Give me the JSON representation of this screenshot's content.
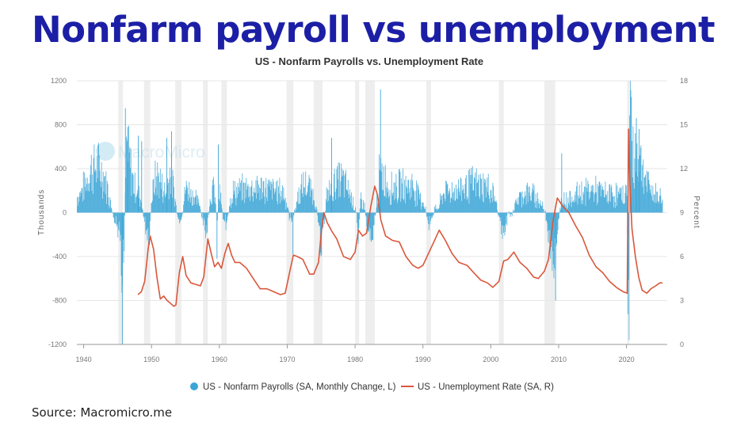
{
  "page": {
    "headline": "Nonfarm payroll vs unemployment",
    "source": "Source: Macromicro.me"
  },
  "chart_data": {
    "type": "bar+line",
    "title": "US - Nonfarm Payrolls vs. Unemployment Rate",
    "watermark": "MacroMicro",
    "x_ticks": [
      "1940",
      "1950",
      "1960",
      "1970",
      "1980",
      "1990",
      "2000",
      "2010",
      "2020"
    ],
    "xlim": [
      1939,
      2026
    ],
    "y_left": {
      "label": "Thousands",
      "ticks": [
        "1200",
        "800",
        "400",
        "0",
        "-400",
        "-800",
        "-1200"
      ],
      "lim": [
        -1200,
        1200
      ]
    },
    "y_right": {
      "label": "Percent",
      "ticks": [
        "18",
        "15",
        "12",
        "9",
        "6",
        "3",
        "0"
      ],
      "lim": [
        0,
        18
      ]
    },
    "recessions": [
      [
        1945.1,
        1945.8
      ],
      [
        1948.9,
        1949.8
      ],
      [
        1953.5,
        1954.4
      ],
      [
        1957.6,
        1958.3
      ],
      [
        1960.3,
        1961.1
      ],
      [
        1969.9,
        1970.9
      ],
      [
        1973.9,
        1975.2
      ],
      [
        1980.0,
        1980.6
      ],
      [
        1981.5,
        1982.9
      ],
      [
        1990.5,
        1991.2
      ],
      [
        2001.2,
        2001.9
      ],
      [
        2007.9,
        2009.5
      ],
      [
        2020.1,
        2020.4
      ]
    ],
    "legend": [
      {
        "label": "US - Nonfarm Payrolls (SA, Monthly Change, L)",
        "color": "#3aa5d6",
        "marker": "circle"
      },
      {
        "label": "US - Unemployment Rate (SA, R)",
        "color": "#d9573b",
        "marker": "line"
      }
    ],
    "payroll_anchors": [
      [
        1939.0,
        150
      ],
      [
        1940.0,
        250
      ],
      [
        1941.0,
        420
      ],
      [
        1942.0,
        450
      ],
      [
        1943.0,
        350
      ],
      [
        1944.0,
        80
      ],
      [
        1944.8,
        -150
      ],
      [
        1945.2,
        -250
      ],
      [
        1945.6,
        -800
      ],
      [
        1945.9,
        -300
      ],
      [
        1946.3,
        650
      ],
      [
        1946.8,
        450
      ],
      [
        1947.5,
        250
      ],
      [
        1948.3,
        160
      ],
      [
        1949.0,
        -100
      ],
      [
        1949.6,
        -300
      ],
      [
        1950.0,
        150
      ],
      [
        1950.5,
        320
      ],
      [
        1951.0,
        350
      ],
      [
        1952.0,
        180
      ],
      [
        1952.7,
        420
      ],
      [
        1953.4,
        150
      ],
      [
        1953.9,
        -100
      ],
      [
        1954.3,
        -120
      ],
      [
        1955.0,
        250
      ],
      [
        1956.0,
        180
      ],
      [
        1957.0,
        80
      ],
      [
        1957.7,
        -130
      ],
      [
        1958.1,
        -180
      ],
      [
        1958.6,
        150
      ],
      [
        1959.2,
        250
      ],
      [
        1959.6,
        -100
      ],
      [
        1960.0,
        200
      ],
      [
        1960.5,
        -50
      ],
      [
        1961.0,
        -100
      ],
      [
        1961.5,
        120
      ],
      [
        1962.0,
        200
      ],
      [
        1965.0,
        250
      ],
      [
        1968.0,
        220
      ],
      [
        1969.5,
        200
      ],
      [
        1970.3,
        -50
      ],
      [
        1970.8,
        -60
      ],
      [
        1971.5,
        150
      ],
      [
        1972.5,
        280
      ],
      [
        1973.5,
        220
      ],
      [
        1974.3,
        60
      ],
      [
        1974.9,
        -280
      ],
      [
        1975.2,
        -250
      ],
      [
        1975.8,
        180
      ],
      [
        1977.0,
        300
      ],
      [
        1978.0,
        320
      ],
      [
        1979.0,
        220
      ],
      [
        1980.0,
        50
      ],
      [
        1980.4,
        -200
      ],
      [
        1980.8,
        150
      ],
      [
        1981.3,
        80
      ],
      [
        1981.8,
        -150
      ],
      [
        1982.5,
        -200
      ],
      [
        1982.9,
        -60
      ],
      [
        1983.5,
        350
      ],
      [
        1984.2,
        350
      ],
      [
        1985.0,
        250
      ],
      [
        1987.0,
        260
      ],
      [
        1988.5,
        260
      ],
      [
        1989.5,
        150
      ],
      [
        1990.3,
        60
      ],
      [
        1990.8,
        -120
      ],
      [
        1991.2,
        -100
      ],
      [
        1991.7,
        40
      ],
      [
        1992.3,
        60
      ],
      [
        1993.0,
        200
      ],
      [
        1995.0,
        220
      ],
      [
        1997.0,
        280
      ],
      [
        1999.0,
        260
      ],
      [
        2000.3,
        200
      ],
      [
        2000.9,
        50
      ],
      [
        2001.4,
        -100
      ],
      [
        2001.9,
        -200
      ],
      [
        2002.5,
        -30
      ],
      [
        2003.2,
        -10
      ],
      [
        2003.8,
        120
      ],
      [
        2005.0,
        200
      ],
      [
        2006.5,
        160
      ],
      [
        2007.5,
        80
      ],
      [
        2008.0,
        -20
      ],
      [
        2008.5,
        -250
      ],
      [
        2008.9,
        -550
      ],
      [
        2009.2,
        -700
      ],
      [
        2009.7,
        -200
      ],
      [
        2010.0,
        -20
      ],
      [
        2010.5,
        150
      ],
      [
        2011.0,
        120
      ],
      [
        2013.0,
        190
      ],
      [
        2015.0,
        220
      ],
      [
        2017.0,
        180
      ],
      [
        2019.0,
        170
      ],
      [
        2020.0,
        180
      ],
      [
        2020.2,
        -1200
      ],
      [
        2020.33,
        -1200
      ],
      [
        2020.4,
        1200
      ],
      [
        2020.55,
        1200
      ],
      [
        2020.8,
        500
      ],
      [
        2021.3,
        600
      ],
      [
        2021.8,
        550
      ],
      [
        2022.5,
        400
      ],
      [
        2023.0,
        270
      ],
      [
        2024.0,
        180
      ],
      [
        2025.3,
        140
      ]
    ],
    "payroll_spikes": [
      [
        1945.65,
        -1200
      ],
      [
        1946.1,
        950
      ],
      [
        1946.45,
        780
      ],
      [
        1948.0,
        700
      ],
      [
        1948.5,
        650
      ],
      [
        1952.2,
        680
      ],
      [
        1952.9,
        740
      ],
      [
        1959.6,
        -420
      ],
      [
        1959.8,
        620
      ],
      [
        1970.8,
        -380
      ],
      [
        1976.5,
        680
      ],
      [
        1983.7,
        1120
      ],
      [
        2009.5,
        -800
      ],
      [
        2010.4,
        540
      ],
      [
        2021.4,
        860
      ],
      [
        2021.8,
        760
      ]
    ],
    "unemployment": [
      [
        1948.0,
        3.4
      ],
      [
        1948.5,
        3.6
      ],
      [
        1949.0,
        4.3
      ],
      [
        1949.5,
        6.5
      ],
      [
        1949.8,
        7.4
      ],
      [
        1950.3,
        6.5
      ],
      [
        1950.8,
        4.6
      ],
      [
        1951.3,
        3.1
      ],
      [
        1951.8,
        3.3
      ],
      [
        1952.3,
        3.0
      ],
      [
        1952.8,
        2.8
      ],
      [
        1953.3,
        2.6
      ],
      [
        1953.6,
        2.7
      ],
      [
        1954.1,
        4.9
      ],
      [
        1954.6,
        6.0
      ],
      [
        1955.1,
        4.7
      ],
      [
        1955.8,
        4.2
      ],
      [
        1956.5,
        4.1
      ],
      [
        1957.2,
        4.0
      ],
      [
        1957.7,
        4.6
      ],
      [
        1958.3,
        7.2
      ],
      [
        1958.8,
        6.2
      ],
      [
        1959.3,
        5.3
      ],
      [
        1959.8,
        5.6
      ],
      [
        1960.3,
        5.2
      ],
      [
        1960.8,
        6.2
      ],
      [
        1961.3,
        6.9
      ],
      [
        1961.8,
        6.1
      ],
      [
        1962.3,
        5.6
      ],
      [
        1963.0,
        5.6
      ],
      [
        1964.0,
        5.2
      ],
      [
        1965.0,
        4.5
      ],
      [
        1966.0,
        3.8
      ],
      [
        1967.0,
        3.8
      ],
      [
        1968.0,
        3.6
      ],
      [
        1969.0,
        3.4
      ],
      [
        1969.7,
        3.5
      ],
      [
        1970.3,
        4.8
      ],
      [
        1970.9,
        6.1
      ],
      [
        1971.5,
        6.0
      ],
      [
        1972.3,
        5.8
      ],
      [
        1973.3,
        4.8
      ],
      [
        1973.9,
        4.8
      ],
      [
        1974.6,
        5.6
      ],
      [
        1975.1,
        8.0
      ],
      [
        1975.4,
        9.0
      ],
      [
        1975.9,
        8.3
      ],
      [
        1976.6,
        7.7
      ],
      [
        1977.3,
        7.2
      ],
      [
        1978.3,
        6.0
      ],
      [
        1979.3,
        5.8
      ],
      [
        1980.0,
        6.3
      ],
      [
        1980.5,
        7.8
      ],
      [
        1981.1,
        7.4
      ],
      [
        1981.7,
        7.6
      ],
      [
        1982.3,
        9.4
      ],
      [
        1982.9,
        10.8
      ],
      [
        1983.3,
        10.2
      ],
      [
        1983.8,
        8.5
      ],
      [
        1984.5,
        7.4
      ],
      [
        1985.5,
        7.1
      ],
      [
        1986.5,
        7.0
      ],
      [
        1987.5,
        6.0
      ],
      [
        1988.5,
        5.4
      ],
      [
        1989.3,
        5.2
      ],
      [
        1990.0,
        5.4
      ],
      [
        1990.8,
        6.2
      ],
      [
        1991.5,
        6.9
      ],
      [
        1992.4,
        7.8
      ],
      [
        1993.3,
        7.1
      ],
      [
        1994.3,
        6.2
      ],
      [
        1995.3,
        5.6
      ],
      [
        1996.5,
        5.4
      ],
      [
        1997.5,
        4.9
      ],
      [
        1998.5,
        4.4
      ],
      [
        1999.5,
        4.2
      ],
      [
        2000.3,
        3.9
      ],
      [
        2001.2,
        4.3
      ],
      [
        2001.9,
        5.7
      ],
      [
        2002.5,
        5.8
      ],
      [
        2003.4,
        6.3
      ],
      [
        2004.3,
        5.6
      ],
      [
        2005.3,
        5.2
      ],
      [
        2006.3,
        4.6
      ],
      [
        2007.0,
        4.5
      ],
      [
        2007.9,
        5.0
      ],
      [
        2008.5,
        5.8
      ],
      [
        2009.2,
        8.5
      ],
      [
        2009.8,
        10.0
      ],
      [
        2010.5,
        9.5
      ],
      [
        2011.5,
        9.0
      ],
      [
        2012.5,
        8.1
      ],
      [
        2013.5,
        7.3
      ],
      [
        2014.5,
        6.1
      ],
      [
        2015.5,
        5.3
      ],
      [
        2016.5,
        4.9
      ],
      [
        2017.5,
        4.3
      ],
      [
        2018.5,
        3.9
      ],
      [
        2019.5,
        3.6
      ],
      [
        2020.1,
        3.5
      ],
      [
        2020.3,
        14.7
      ],
      [
        2020.5,
        11.0
      ],
      [
        2020.8,
        7.9
      ],
      [
        2021.3,
        6.0
      ],
      [
        2021.8,
        4.6
      ],
      [
        2022.3,
        3.7
      ],
      [
        2023.0,
        3.5
      ],
      [
        2023.6,
        3.8
      ],
      [
        2024.3,
        4.0
      ],
      [
        2024.9,
        4.2
      ],
      [
        2025.3,
        4.2
      ]
    ]
  }
}
